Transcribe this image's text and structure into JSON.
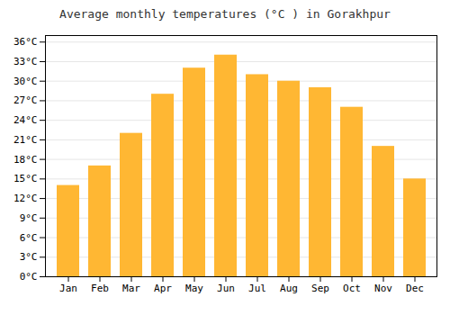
{
  "chart_data": {
    "type": "bar",
    "title": "Average monthly temperatures (°C ) in Gorakhpur",
    "categories": [
      "Jan",
      "Feb",
      "Mar",
      "Apr",
      "May",
      "Jun",
      "Jul",
      "Aug",
      "Sep",
      "Oct",
      "Nov",
      "Dec"
    ],
    "values": [
      14,
      17,
      22,
      28,
      32,
      34,
      31,
      30,
      29,
      26,
      20,
      15
    ],
    "color": "#FFB733",
    "ylim": [
      0,
      37
    ],
    "yticks": [
      {
        "value": 0,
        "label": "0°C"
      },
      {
        "value": 3,
        "label": "3°C"
      },
      {
        "value": 6,
        "label": "6°C"
      },
      {
        "value": 9,
        "label": "9°C"
      },
      {
        "value": 12,
        "label": "12°C"
      },
      {
        "value": 15,
        "label": "15°C"
      },
      {
        "value": 18,
        "label": "18°C"
      },
      {
        "value": 21,
        "label": "21°C"
      },
      {
        "value": 24,
        "label": "24°C"
      },
      {
        "value": 27,
        "label": "27°C"
      },
      {
        "value": 30,
        "label": "30°C"
      },
      {
        "value": 33,
        "label": "33°C"
      },
      {
        "value": 36,
        "label": "36°C"
      }
    ],
    "grid": true
  }
}
